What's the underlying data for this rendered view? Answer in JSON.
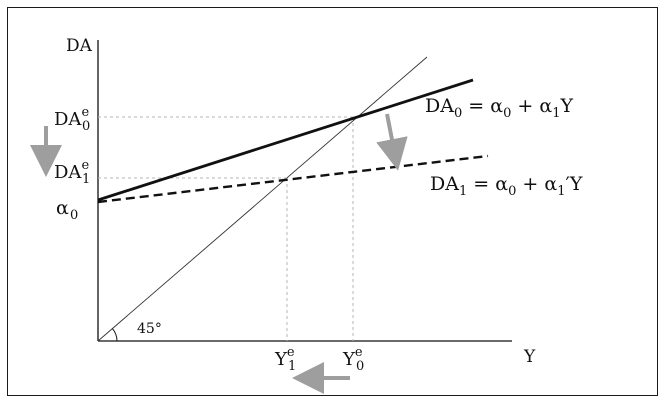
{
  "axes": {
    "y_label": "DA",
    "x_label": "Y"
  },
  "y_ticks": {
    "da0_main": "DA",
    "da0_sub": "0",
    "da0_sup": "e",
    "da1_main": "DA",
    "da1_sub": "1",
    "da1_sup": "e",
    "alpha_main": "α",
    "alpha_sub": "0"
  },
  "x_ticks": {
    "y1_main": "Y",
    "y1_sub": "1",
    "y1_sup": "e",
    "y0_main": "Y",
    "y0_sub": "0",
    "y0_sup": "e"
  },
  "angle_label": "45°",
  "equations": {
    "da0": {
      "lhs_main": "DA",
      "lhs_sub": "0",
      "mid": " = α",
      "mid_sub": "0",
      "plus": " + α",
      "plus_sub": "1",
      "tail": "Y"
    },
    "da1": {
      "lhs_main": "DA",
      "lhs_sub": "1",
      "mid": " = α",
      "mid_sub": "0",
      "plus": " + α",
      "plus_sub": "1",
      "tail": "′Y"
    }
  },
  "colors": {
    "axis": "#111111",
    "line": "#111111",
    "guide": "#b5b5b5",
    "arrow": "#9e9e9e"
  }
}
